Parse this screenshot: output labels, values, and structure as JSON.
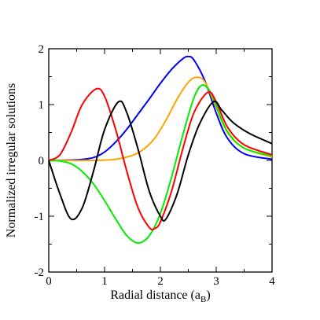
{
  "chart_data": {
    "type": "line",
    "xlabel_main": "Radial distance (a",
    "xlabel_sub": "B",
    "xlabel_close": ")",
    "ylabel": "Normalized irregular solutions",
    "xlim": [
      0,
      4
    ],
    "ylim": [
      -2,
      2
    ],
    "xticks": [
      "0",
      "1",
      "2",
      "3",
      "4"
    ],
    "yticks": [
      "-2",
      "-1",
      "0",
      "1",
      "2"
    ],
    "grid": false,
    "legend": "none",
    "series": [
      {
        "color": "#0000ff",
        "x": [
          0,
          0.5,
          0.8,
          1.0,
          1.2,
          1.4,
          1.6,
          1.8,
          2.0,
          2.2,
          2.4,
          2.5,
          2.6,
          2.8,
          3.0,
          3.2,
          3.5,
          4.0
        ],
        "y": [
          0,
          0.01,
          0.05,
          0.15,
          0.33,
          0.56,
          0.83,
          1.1,
          1.38,
          1.63,
          1.82,
          1.86,
          1.8,
          1.42,
          0.85,
          0.4,
          0.12,
          0.02
        ]
      },
      {
        "color": "#ffa500",
        "x": [
          0,
          0.8,
          1.2,
          1.5,
          1.7,
          1.9,
          2.1,
          2.3,
          2.5,
          2.65,
          2.8,
          3.0,
          3.2,
          3.5,
          4.0
        ],
        "y": [
          0,
          0,
          0.02,
          0.09,
          0.2,
          0.4,
          0.72,
          1.1,
          1.4,
          1.49,
          1.4,
          0.95,
          0.5,
          0.22,
          0.06
        ]
      },
      {
        "color": "#00ee00",
        "x": [
          0,
          0.2,
          0.4,
          0.6,
          0.8,
          1.0,
          1.2,
          1.4,
          1.6,
          1.8,
          2.0,
          2.2,
          2.4,
          2.6,
          2.75,
          2.9,
          3.0,
          3.2,
          3.5,
          4.0
        ],
        "y": [
          0,
          -0.01,
          -0.06,
          -0.2,
          -0.42,
          -0.72,
          -1.05,
          -1.35,
          -1.48,
          -1.35,
          -0.95,
          -0.3,
          0.45,
          1.12,
          1.35,
          1.22,
          0.98,
          0.52,
          0.22,
          0.08
        ]
      },
      {
        "color": "#ff0000",
        "x": [
          0,
          0.2,
          0.4,
          0.6,
          0.85,
          1.0,
          1.2,
          1.4,
          1.6,
          1.8,
          1.9,
          2.0,
          2.2,
          2.4,
          2.6,
          2.85,
          3.0,
          3.2,
          3.5,
          4.0
        ],
        "y": [
          0,
          0.1,
          0.5,
          1.0,
          1.28,
          1.15,
          0.55,
          -0.2,
          -0.85,
          -1.2,
          -1.22,
          -1.1,
          -0.55,
          0.2,
          0.85,
          1.22,
          1.05,
          0.6,
          0.28,
          0.1
        ]
      },
      {
        "color": "#000000",
        "x": [
          0,
          0.2,
          0.4,
          0.6,
          0.8,
          1.0,
          1.25,
          1.4,
          1.6,
          1.8,
          2.0,
          2.1,
          2.3,
          2.5,
          2.7,
          2.95,
          3.1,
          3.3,
          3.6,
          4.0
        ],
        "y": [
          0,
          -0.6,
          -1.05,
          -0.85,
          -0.2,
          0.55,
          1.05,
          0.85,
          0.2,
          -0.55,
          -1.0,
          -1.05,
          -0.6,
          0.1,
          0.65,
          1.05,
          0.9,
          0.68,
          0.48,
          0.3
        ]
      }
    ]
  }
}
